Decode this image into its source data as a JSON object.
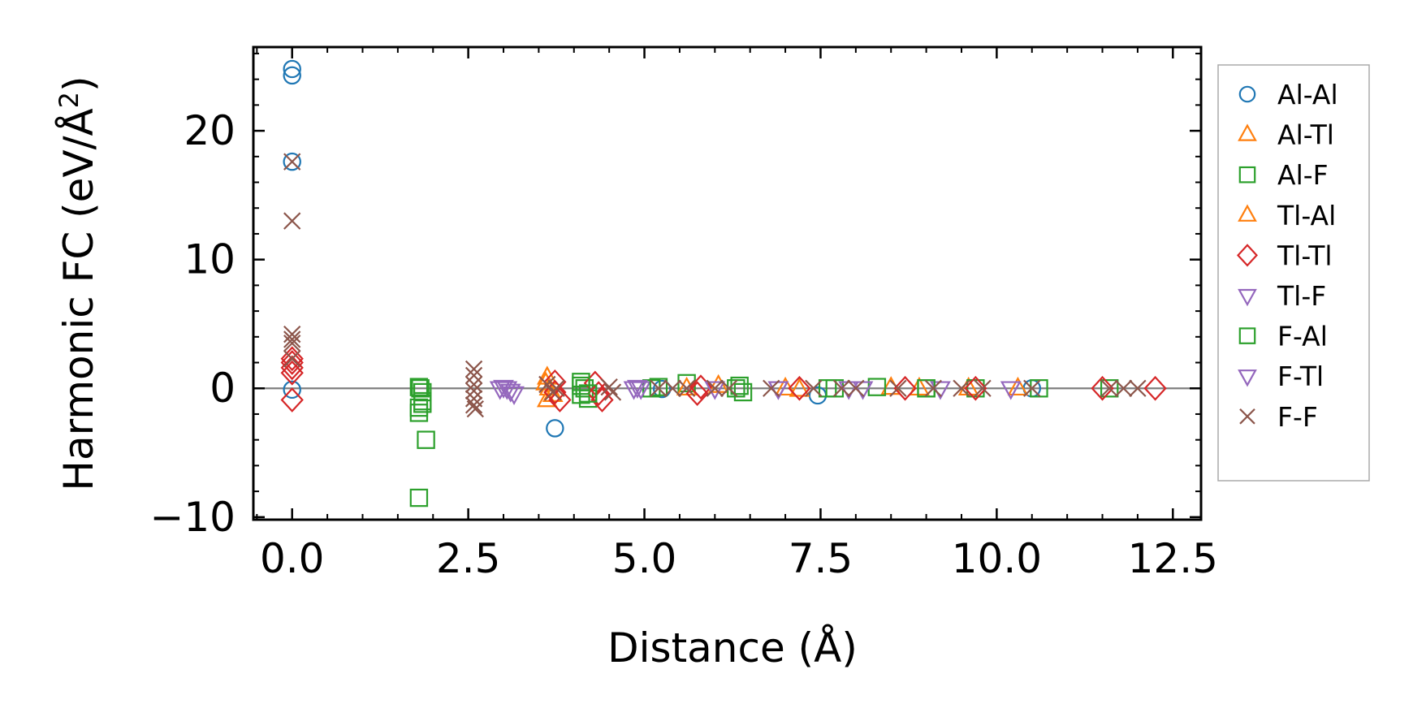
{
  "chart_data": {
    "type": "scatter",
    "title": "",
    "xlabel": "Distance (Å)",
    "ylabel_prefix": "Harmonic FC (eV/Å",
    "ylabel_sup": "2",
    "ylabel_suffix": ")",
    "xlim": [
      -0.55,
      12.9
    ],
    "ylim": [
      -10.2,
      26.5
    ],
    "xticks": [
      0.0,
      2.5,
      5.0,
      7.5,
      10.0,
      12.5
    ],
    "xtick_labels": [
      "0.0",
      "2.5",
      "5.0",
      "7.5",
      "10.0",
      "12.5"
    ],
    "yticks": [
      -10,
      0,
      10,
      20
    ],
    "ytick_labels": [
      "−10",
      "0",
      "10",
      "20"
    ],
    "zero_line": true,
    "legend_position": "outside-right",
    "series": [
      {
        "name": "Al-Al",
        "marker": "circle",
        "color": "#1f77b4",
        "points": [
          [
            0,
            24.8
          ],
          [
            0,
            24.3
          ],
          [
            0,
            17.6
          ],
          [
            0,
            -0.1
          ],
          [
            3.73,
            -3.1
          ],
          [
            7.46,
            -0.55
          ],
          [
            5.25,
            -0.05
          ],
          [
            10.5,
            0.0
          ]
        ]
      },
      {
        "name": "Al-Tl",
        "marker": "triangle-up",
        "color": "#ff7f0e",
        "points": [
          [
            3.62,
            0.85
          ],
          [
            3.62,
            -0.9
          ],
          [
            3.65,
            0.0
          ],
          [
            6.05,
            0.2
          ],
          [
            7.2,
            -0.1
          ],
          [
            8.5,
            0.05
          ],
          [
            9.6,
            0.0
          ]
        ]
      },
      {
        "name": "Al-F",
        "marker": "square",
        "color": "#2ca02c",
        "points": [
          [
            1.8,
            0.1
          ],
          [
            1.85,
            -0.3
          ],
          [
            1.8,
            -1.5
          ],
          [
            1.85,
            -1.0
          ],
          [
            1.8,
            -1.9
          ],
          [
            1.9,
            -4.0
          ],
          [
            1.8,
            -8.5
          ],
          [
            4.1,
            0.5
          ],
          [
            4.15,
            0.0
          ],
          [
            4.1,
            -0.5
          ],
          [
            4.2,
            -0.8
          ],
          [
            5.1,
            0.0
          ],
          [
            5.6,
            0.4
          ],
          [
            6.3,
            0.0
          ],
          [
            6.4,
            -0.3
          ],
          [
            7.7,
            0.0
          ],
          [
            8.3,
            0.1
          ],
          [
            9.0,
            0.0
          ],
          [
            9.7,
            0.0
          ],
          [
            10.6,
            0.0
          ],
          [
            11.6,
            0.0
          ]
        ]
      },
      {
        "name": "Tl-Al",
        "marker": "triangle-up",
        "color": "#ff7f0e",
        "points": [
          [
            3.6,
            0.4
          ],
          [
            3.7,
            -0.5
          ],
          [
            5.6,
            0.0
          ],
          [
            7.0,
            0.0
          ],
          [
            8.9,
            0.0
          ],
          [
            10.3,
            0.0
          ]
        ]
      },
      {
        "name": "Tl-Tl",
        "marker": "diamond",
        "color": "#d62728",
        "points": [
          [
            0,
            2.3
          ],
          [
            0,
            2.0
          ],
          [
            0,
            1.6
          ],
          [
            0,
            1.2
          ],
          [
            0,
            -0.9
          ],
          [
            3.73,
            0.5
          ],
          [
            3.73,
            -0.3
          ],
          [
            3.8,
            -0.9
          ],
          [
            4.3,
            0.4
          ],
          [
            4.35,
            -0.4
          ],
          [
            4.4,
            -0.9
          ],
          [
            5.8,
            0.1
          ],
          [
            5.75,
            -0.4
          ],
          [
            7.2,
            0.0
          ],
          [
            8.7,
            0.0
          ],
          [
            9.7,
            0.0
          ],
          [
            11.5,
            0.0
          ],
          [
            12.25,
            0.0
          ]
        ]
      },
      {
        "name": "Tl-F",
        "marker": "triangle-down",
        "color": "#9467bd",
        "points": [
          [
            2.95,
            0.0
          ],
          [
            3.05,
            0.0
          ],
          [
            3.15,
            -0.4
          ],
          [
            4.85,
            0.0
          ],
          [
            4.95,
            0.0
          ],
          [
            6.0,
            0.0
          ],
          [
            6.9,
            0.0
          ],
          [
            7.9,
            0.0
          ],
          [
            9.2,
            0.0
          ],
          [
            10.2,
            0.0
          ]
        ]
      },
      {
        "name": "F-Al",
        "marker": "square",
        "color": "#2ca02c",
        "points": [
          [
            1.82,
            0.0
          ],
          [
            1.85,
            -1.2
          ],
          [
            4.1,
            0.2
          ],
          [
            4.2,
            -0.4
          ],
          [
            5.2,
            0.1
          ],
          [
            6.35,
            0.2
          ],
          [
            7.6,
            0.0
          ],
          [
            9.0,
            0.0
          ]
        ]
      },
      {
        "name": "F-Tl",
        "marker": "triangle-down",
        "color": "#9467bd",
        "points": [
          [
            3.0,
            0.1
          ],
          [
            3.1,
            -0.2
          ],
          [
            4.9,
            0.1
          ],
          [
            6.9,
            0.0
          ],
          [
            8.1,
            0.0
          ]
        ]
      },
      {
        "name": "F-F",
        "marker": "x",
        "color": "#8c564b",
        "points": [
          [
            0,
            17.6
          ],
          [
            0,
            13.0
          ],
          [
            0,
            4.2
          ],
          [
            0,
            3.8
          ],
          [
            0,
            3.5
          ],
          [
            0,
            2.3
          ],
          [
            2.58,
            1.5
          ],
          [
            2.58,
            1.0
          ],
          [
            2.58,
            0.3
          ],
          [
            2.58,
            -0.2
          ],
          [
            2.58,
            -0.8
          ],
          [
            2.58,
            -1.3
          ],
          [
            2.6,
            -1.6
          ],
          [
            3.62,
            0.3
          ],
          [
            3.7,
            -0.3
          ],
          [
            3.75,
            0.0
          ],
          [
            4.5,
            0.1
          ],
          [
            4.55,
            -0.3
          ],
          [
            5.2,
            0.0
          ],
          [
            5.4,
            0.0
          ],
          [
            5.6,
            0.0
          ],
          [
            6.0,
            0.0
          ],
          [
            6.2,
            0.0
          ],
          [
            6.8,
            0.0
          ],
          [
            7.4,
            0.0
          ],
          [
            7.8,
            0.0
          ],
          [
            8.0,
            0.0
          ],
          [
            8.6,
            0.0
          ],
          [
            9.1,
            0.0
          ],
          [
            9.5,
            0.0
          ],
          [
            9.8,
            0.0
          ],
          [
            10.5,
            0.0
          ],
          [
            11.6,
            0.0
          ],
          [
            11.8,
            0.0
          ],
          [
            12.0,
            0.0
          ]
        ]
      }
    ]
  }
}
